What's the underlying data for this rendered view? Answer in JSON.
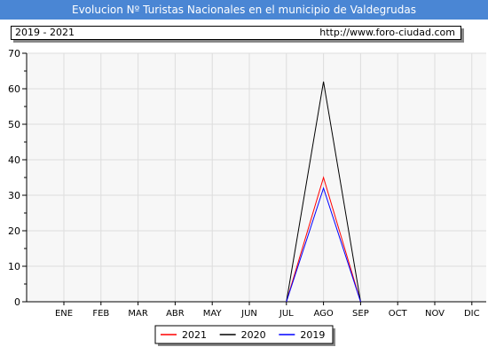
{
  "header": {
    "title": "Evolucion Nº Turistas Nacionales en el municipio de Valdegrudas",
    "period": "2019 - 2021",
    "source_url": "http://www.foro-ciudad.com"
  },
  "colors": {
    "title_bar": "#4a86d4",
    "plot_bg": "#f7f7f7",
    "grid": "#dddddd"
  },
  "chart_data": {
    "type": "line",
    "title": "Evolucion Nº Turistas Nacionales en el municipio de Valdegrudas",
    "xlabel": "",
    "ylabel": "",
    "categories": [
      "ENE",
      "FEB",
      "MAR",
      "ABR",
      "MAY",
      "JUN",
      "JUL",
      "AGO",
      "SEP",
      "OCT",
      "NOV",
      "DIC"
    ],
    "ylim": [
      0,
      70
    ],
    "yticks": [
      0,
      10,
      20,
      30,
      40,
      50,
      60,
      70
    ],
    "grid": true,
    "legend_position": "bottom-center",
    "series": [
      {
        "name": "2021",
        "color": "#ff0000",
        "values": [
          null,
          null,
          null,
          null,
          null,
          null,
          0,
          35,
          0,
          null,
          null,
          null
        ]
      },
      {
        "name": "2020",
        "color": "#000000",
        "values": [
          null,
          null,
          null,
          null,
          null,
          null,
          0,
          62,
          0,
          null,
          null,
          null
        ]
      },
      {
        "name": "2019",
        "color": "#0000ff",
        "values": [
          null,
          null,
          null,
          null,
          null,
          null,
          0,
          32,
          0,
          null,
          null,
          null
        ]
      }
    ]
  }
}
